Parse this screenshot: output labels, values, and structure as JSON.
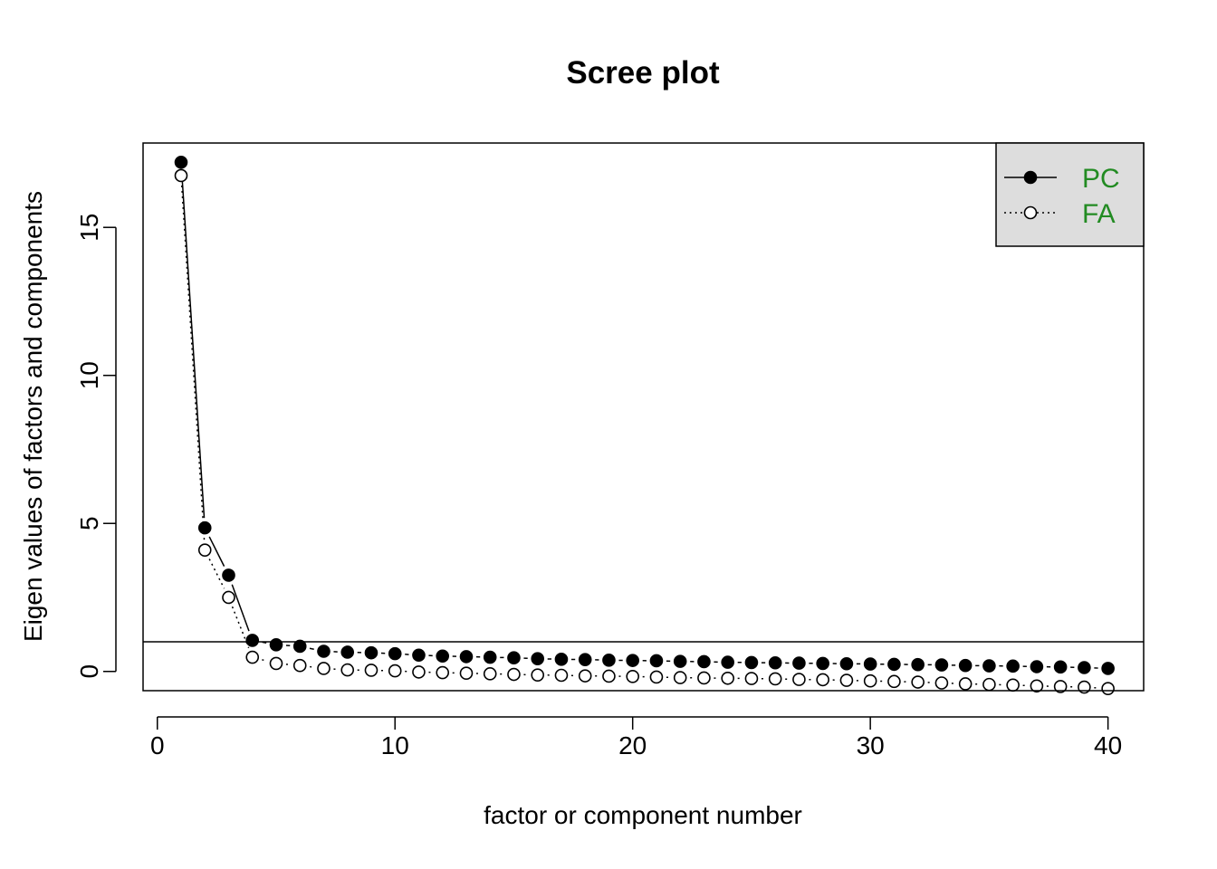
{
  "chart_data": {
    "type": "line",
    "title": "Scree plot",
    "xlabel": "factor or component number",
    "ylabel": "Eigen values of factors and components",
    "xlim": [
      -0.6,
      41.5
    ],
    "ylim": [
      -0.65,
      17.85
    ],
    "x_ticks": [
      "0",
      "10",
      "20",
      "30",
      "40"
    ],
    "y_ticks": [
      "0",
      "5",
      "10",
      "15"
    ],
    "reference_line_y": 1,
    "grid": false,
    "legend": {
      "position": "top-right",
      "background": "#dddddd",
      "text_color": "#228B22",
      "entries": [
        "PC",
        "FA"
      ]
    },
    "x": [
      1,
      2,
      3,
      4,
      5,
      6,
      7,
      8,
      9,
      10,
      11,
      12,
      13,
      14,
      15,
      16,
      17,
      18,
      19,
      20,
      21,
      22,
      23,
      24,
      25,
      26,
      27,
      28,
      29,
      30,
      31,
      32,
      33,
      34,
      35,
      36,
      37,
      38,
      39,
      40
    ],
    "series": [
      {
        "name": "PC",
        "marker": "filled-circle",
        "line": "solid",
        "values": [
          17.2,
          4.85,
          3.25,
          1.05,
          0.9,
          0.85,
          0.68,
          0.65,
          0.63,
          0.6,
          0.55,
          0.52,
          0.5,
          0.48,
          0.46,
          0.43,
          0.41,
          0.4,
          0.38,
          0.37,
          0.36,
          0.34,
          0.33,
          0.31,
          0.3,
          0.29,
          0.28,
          0.27,
          0.26,
          0.25,
          0.24,
          0.23,
          0.22,
          0.2,
          0.19,
          0.18,
          0.16,
          0.15,
          0.13,
          0.1
        ]
      },
      {
        "name": "FA",
        "marker": "open-circle",
        "line": "dotted",
        "values": [
          16.75,
          4.1,
          2.5,
          0.48,
          0.27,
          0.2,
          0.1,
          0.05,
          0.04,
          0.02,
          -0.02,
          -0.04,
          -0.06,
          -0.08,
          -0.1,
          -0.12,
          -0.13,
          -0.15,
          -0.16,
          -0.17,
          -0.19,
          -0.21,
          -0.22,
          -0.23,
          -0.24,
          -0.25,
          -0.27,
          -0.28,
          -0.3,
          -0.32,
          -0.34,
          -0.36,
          -0.39,
          -0.42,
          -0.44,
          -0.46,
          -0.49,
          -0.51,
          -0.53,
          -0.58
        ]
      }
    ]
  }
}
